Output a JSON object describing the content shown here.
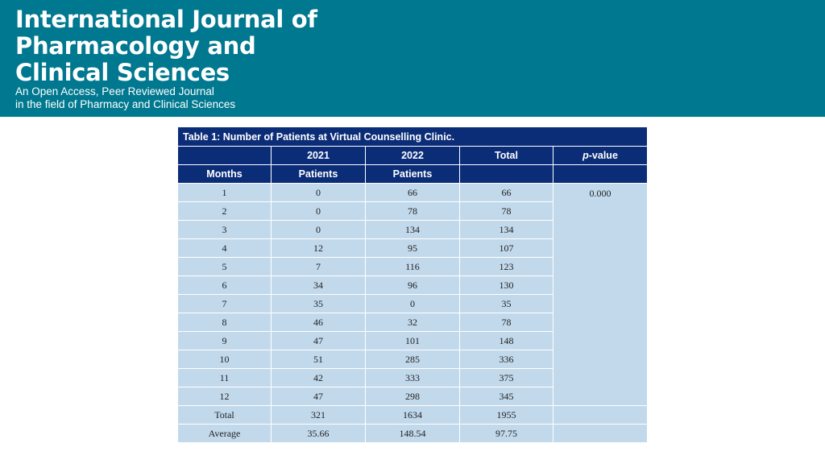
{
  "banner": {
    "title_lines": [
      "International Journal of",
      "Pharmacology and",
      "Clinical Sciences"
    ],
    "tagline_lines": [
      "An Open Access, Peer Reviewed Journal",
      "in the field of Pharmacy and Clinical Sciences"
    ],
    "background_color": "#00788f"
  },
  "table": {
    "caption": "Table 1: Number of Patients at Virtual Counselling Clinic.",
    "header_row1": [
      "",
      "2021",
      "2022",
      "Total"
    ],
    "pvalue_label_italic": "p",
    "pvalue_label_rest": "-value",
    "header_row2": [
      "Months",
      "Patients",
      "Patients",
      "",
      ""
    ],
    "p_value": "0.000",
    "rows": [
      [
        "1",
        "0",
        "66",
        "66"
      ],
      [
        "2",
        "0",
        "78",
        "78"
      ],
      [
        "3",
        "0",
        "134",
        "134"
      ],
      [
        "4",
        "12",
        "95",
        "107"
      ],
      [
        "5",
        "7",
        "116",
        "123"
      ],
      [
        "6",
        "34",
        "96",
        "130"
      ],
      [
        "7",
        "35",
        "0",
        "35"
      ],
      [
        "8",
        "46",
        "32",
        "78"
      ],
      [
        "9",
        "47",
        "101",
        "148"
      ],
      [
        "10",
        "51",
        "285",
        "336"
      ],
      [
        "11",
        "42",
        "333",
        "375"
      ],
      [
        "12",
        "47",
        "298",
        "345"
      ]
    ],
    "footer_rows": [
      [
        "Total",
        "321",
        "1634",
        "1955",
        ""
      ],
      [
        "Average",
        "35.66",
        "148.54",
        "97.75",
        ""
      ]
    ],
    "header_color": "#0b2d78",
    "body_color": "#c2d9ec"
  }
}
